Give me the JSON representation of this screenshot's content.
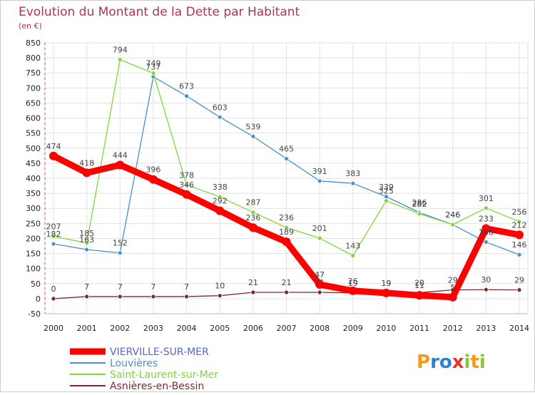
{
  "chart_data": {
    "type": "line",
    "title": "Evolution du Montant de la Dette par Habitant",
    "subtitle": "(en €)",
    "xlabel": "",
    "ylabel": "",
    "x": [
      "2000",
      "2001",
      "2002",
      "2003",
      "2004",
      "2005",
      "2006",
      "2007",
      "2008",
      "2009",
      "2010",
      "2011",
      "2012",
      "2013",
      "2014"
    ],
    "ylim": [
      -50,
      850
    ],
    "yticks": [
      -50,
      0,
      50,
      100,
      150,
      200,
      250,
      300,
      350,
      400,
      450,
      500,
      550,
      600,
      650,
      700,
      750,
      800,
      850
    ],
    "grid": true,
    "legend_position": "bottom-left",
    "series": [
      {
        "name": "VIERVILLE-SUR-MER",
        "color": "#ff0000",
        "values": [
          474,
          418,
          444,
          396,
          346,
          292,
          236,
          189,
          47,
          26,
          19,
          11,
          5,
          233,
          212
        ]
      },
      {
        "name": "Louvières",
        "color": "#4a90c8",
        "values": [
          182,
          163,
          152,
          737,
          673,
          603,
          539,
          465,
          391,
          383,
          339,
          286,
          246,
          188,
          146
        ]
      },
      {
        "name": "Saint-Laurent-sur-Mer",
        "color": "#7dd63a",
        "values": [
          207,
          185,
          794,
          749,
          378,
          338,
          287,
          236,
          201,
          143,
          325,
          282,
          246,
          301,
          256
        ]
      },
      {
        "name": "Asnières-en-Bessin",
        "color": "#7a2a2a",
        "values": [
          0,
          7,
          7,
          7,
          7,
          10,
          21,
          21,
          21,
          19,
          19,
          20,
          29,
          30,
          29
        ]
      }
    ]
  },
  "brand": {
    "logo_text": "Proxiti"
  }
}
